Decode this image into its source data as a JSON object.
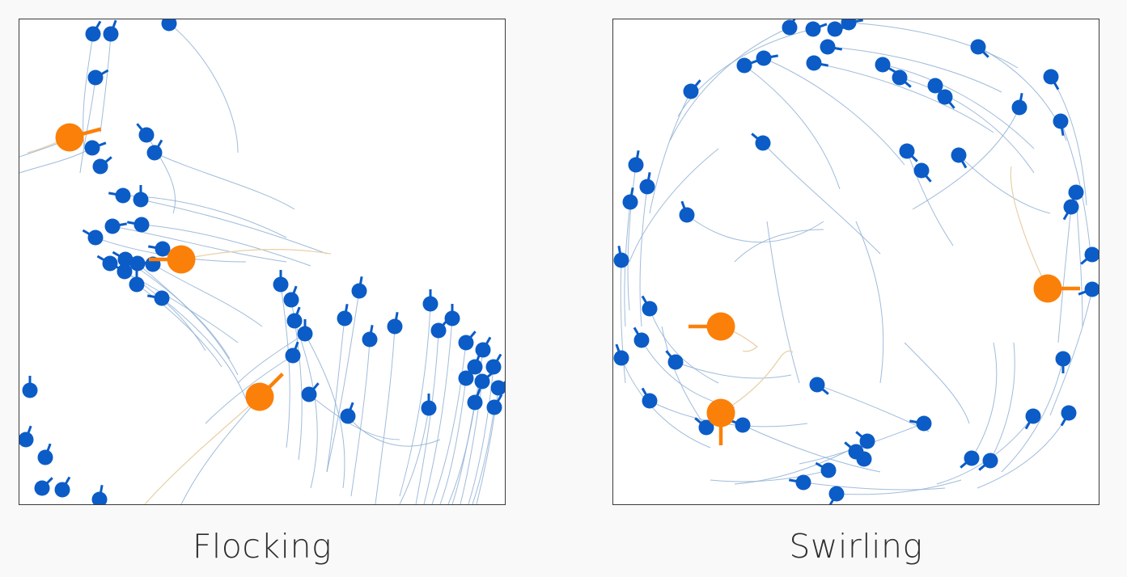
{
  "colors": {
    "agent": "#0b5cc6",
    "predator": "#fb8009",
    "agent_trail": "#8fb0d4",
    "predator_trail": "#e9cfa6",
    "frame": "#3a3a3a",
    "background": "#f9f9f9"
  },
  "panels": [
    {
      "id": "flocking",
      "caption": "Flocking"
    },
    {
      "id": "swirling",
      "caption": "Swirling"
    }
  ]
}
